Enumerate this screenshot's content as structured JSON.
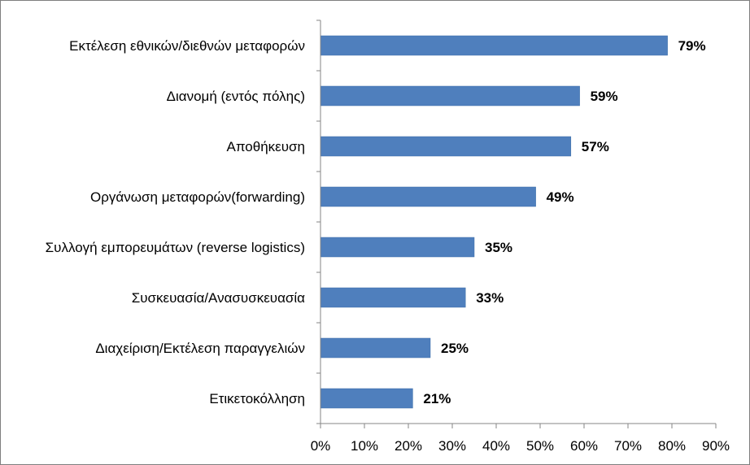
{
  "chart_data": {
    "type": "bar",
    "orientation": "horizontal",
    "title": "",
    "xlabel": "",
    "ylabel": "",
    "categories": [
      "Εκτέλεση εθνικών/διεθνών μεταφορών",
      "Διανομή (εντός πόλης)",
      "Αποθήκευση",
      "Οργάνωση μεταφορών(forwarding)",
      "Συλλογή εμπορευμάτων (reverse logistics)",
      "Συσκευασία/Ανασυσκευασία",
      "Διαχείριση/Εκτέλεση παραγγελιών",
      "Ετικετοκόλληση"
    ],
    "values": [
      79,
      59,
      57,
      49,
      35,
      33,
      25,
      21
    ],
    "data_labels": [
      "79%",
      "59%",
      "57%",
      "49%",
      "35%",
      "33%",
      "25%",
      "21%"
    ],
    "xlim": [
      0,
      90
    ],
    "x_ticks": [
      "0%",
      "10%",
      "20%",
      "30%",
      "40%",
      "50%",
      "60%",
      "70%",
      "80%",
      "90%"
    ],
    "grid": false,
    "legend": "none",
    "bar_color": "#4f7fbd",
    "bar_border_color": "#3d6fa8"
  }
}
